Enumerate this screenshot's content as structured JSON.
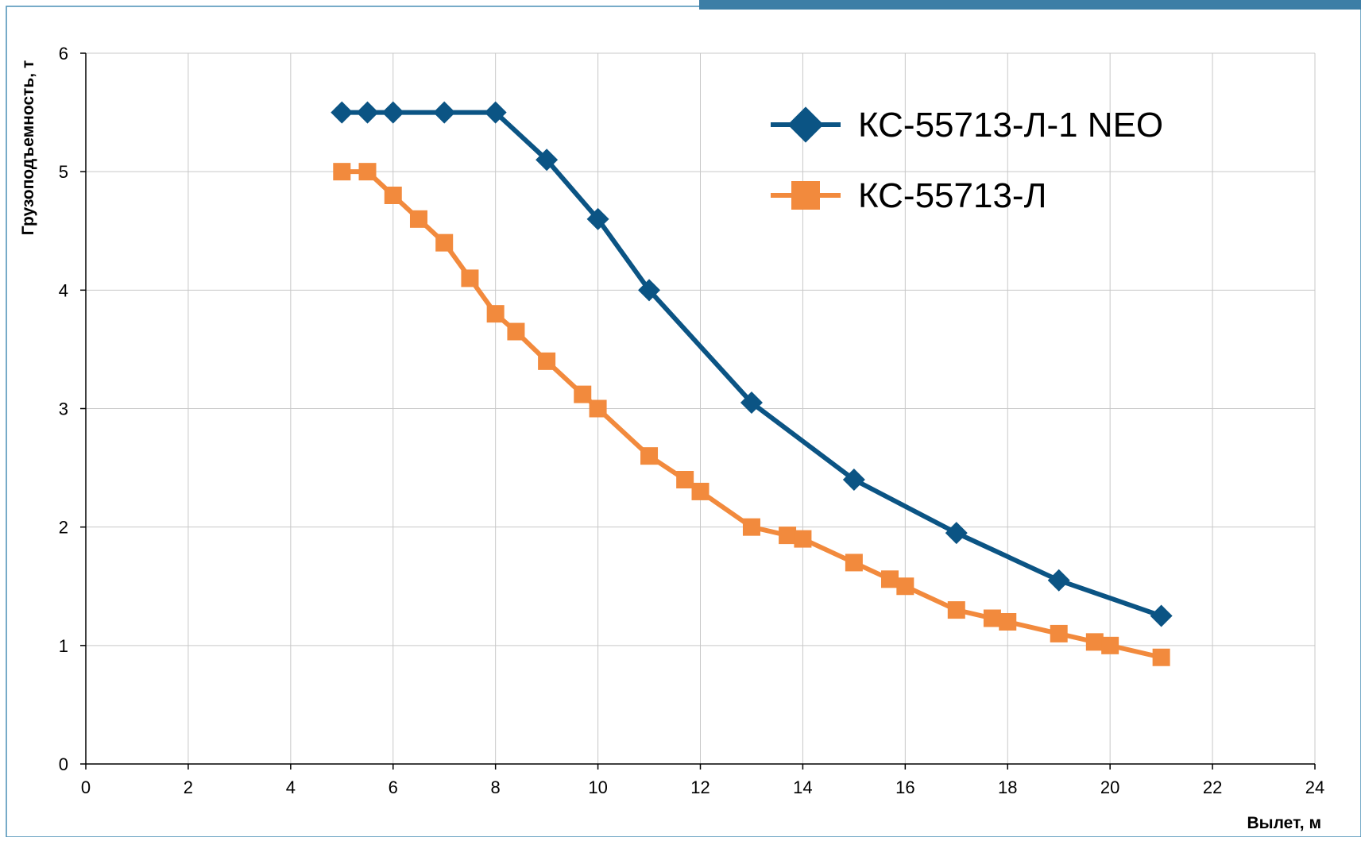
{
  "colors": {
    "accent_bar": "#3d7ea6",
    "frame_border": "#4a8fb5",
    "series_1": "#0b5484",
    "series_2": "#f28a3d",
    "grid": "#c8c8c8",
    "axis": "#000000"
  },
  "chart_data": {
    "type": "line",
    "title": "",
    "xlabel": "Вылет, м",
    "ylabel": "Грузоподъемность, т",
    "xlim": [
      0,
      24
    ],
    "ylim": [
      0,
      6
    ],
    "xticks": [
      0,
      2,
      4,
      6,
      8,
      10,
      12,
      14,
      16,
      18,
      20,
      22,
      24
    ],
    "yticks": [
      0,
      1,
      2,
      3,
      4,
      5,
      6
    ],
    "grid": true,
    "legend_position": "top-right",
    "series": [
      {
        "name": "КС-55713-Л-1 NEO",
        "marker": "diamond",
        "color": "#0b5484",
        "x": [
          5,
          5.5,
          6,
          7,
          8,
          9,
          10,
          11,
          13,
          15,
          17,
          19,
          21
        ],
        "y": [
          5.5,
          5.5,
          5.5,
          5.5,
          5.5,
          5.1,
          4.6,
          4.0,
          3.05,
          2.4,
          1.95,
          1.55,
          1.25
        ]
      },
      {
        "name": "КС-55713-Л",
        "marker": "square",
        "color": "#f28a3d",
        "x": [
          5,
          5.5,
          6,
          6.5,
          7,
          7.5,
          8,
          8.4,
          9,
          9.7,
          10,
          11,
          11.7,
          12,
          13,
          13.7,
          14,
          15,
          15.7,
          16,
          17,
          17.7,
          18,
          19,
          19.7,
          20,
          21
        ],
        "y": [
          5.0,
          5.0,
          4.8,
          4.6,
          4.4,
          4.1,
          3.8,
          3.65,
          3.4,
          3.12,
          3.0,
          2.6,
          2.4,
          2.3,
          2.0,
          1.93,
          1.9,
          1.7,
          1.56,
          1.5,
          1.3,
          1.23,
          1.2,
          1.1,
          1.03,
          1.0,
          0.9
        ]
      }
    ]
  }
}
